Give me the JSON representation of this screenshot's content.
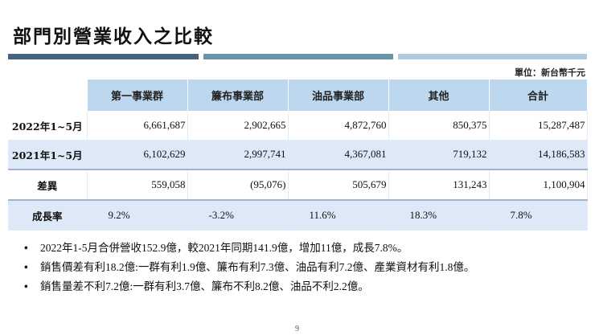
{
  "title": "部門別營業收入之比較",
  "header_bars": [
    {
      "color": "#44637f"
    },
    {
      "color": "#6a93a8"
    },
    {
      "color": "#b2cbdc"
    }
  ],
  "unit_note": "單位：新台幣千元",
  "table": {
    "columns": [
      "",
      "第一事業群",
      "簾布事業部",
      "油品事業部",
      "其他",
      "合計"
    ],
    "rows": [
      {
        "label": "2022年1~5月",
        "values": [
          "6,661,687",
          "2,902,665",
          "4,872,760",
          "850,375",
          "15,287,487"
        ]
      },
      {
        "label": "2021年1~5月",
        "values": [
          "6,102,629",
          "2,997,741",
          "4,367,081",
          "719,132",
          "14,186,583"
        ]
      },
      {
        "label": "差異",
        "values": [
          "559,058",
          "(95,076)",
          "505,679",
          "131,243",
          "1,100,904"
        ]
      },
      {
        "label": "成長率",
        "values": [
          "9.2%",
          "-3.2%",
          "11.6%",
          "18.3%",
          "7.8%"
        ]
      }
    ]
  },
  "bullets": [
    {
      "marker": "•",
      "text": "2022年1-5月合併營收152.9億，較2021年同期141.9億，增加11億，成長7.8%。"
    },
    {
      "marker": "•",
      "text": "銷售價差有利18.2億:一群有利1.9億、簾布有利7.3億、油品有利7.2億、產業資材有利1.8億。"
    },
    {
      "marker": "•",
      "text": "銷售量差不利7.2億:一群有利3.7億、簾布不利8.2億、油品不利2.2億。"
    }
  ],
  "page_number": "9",
  "colors": {
    "header_fill": "#bdd7ee",
    "band_fill": "#dde9f6",
    "separator": "#9fb3cf"
  }
}
